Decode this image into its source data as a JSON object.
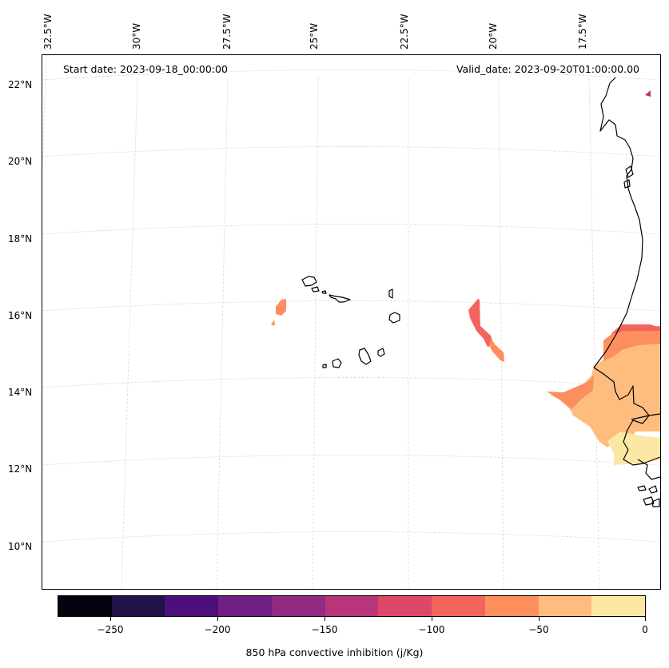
{
  "map": {
    "start_date": "Start date: 2023-09-18_00:00:00",
    "valid_date": "Valid_date: 2023-09-20T01:00:00.00",
    "lon_labels": [
      "32.5°W",
      "30°W",
      "27.5°W",
      "25°W",
      "22.5°W",
      "20°W",
      "17.5°W"
    ],
    "lat_labels": [
      "22°N",
      "20°N",
      "18°N",
      "16°N",
      "14°N",
      "12°N",
      "10°N"
    ]
  },
  "colorbar": {
    "title": "850 hPa convective inhibition (j/Kg)",
    "ticks": [
      "−250",
      "−200",
      "−150",
      "−100",
      "−50",
      "0"
    ],
    "colors": [
      "#04030f",
      "#211248",
      "#4d0f7a",
      "#711f82",
      "#922a82",
      "#b73679",
      "#dc476a",
      "#f3655c",
      "#fd8e5e",
      "#febd7f",
      "#fce7a5"
    ]
  }
}
